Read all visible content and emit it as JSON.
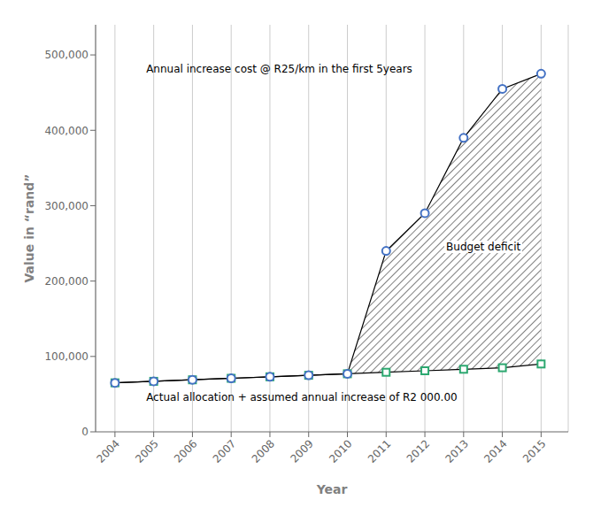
{
  "chart_data": {
    "type": "line",
    "xlabel": "Year",
    "ylabel": "Value in “rand”",
    "x": [
      2004,
      2005,
      2006,
      2007,
      2008,
      2009,
      2010,
      2011,
      2012,
      2013,
      2014,
      2015
    ],
    "xlim": [
      2003.5,
      2015.7
    ],
    "xticks": [
      2004,
      2005,
      2006,
      2007,
      2008,
      2009,
      2010,
      2011,
      2012,
      2013,
      2014,
      2015
    ],
    "ylim": [
      0,
      540000
    ],
    "yticks": [
      0,
      {
        "value": 100000,
        "label": "100,000"
      },
      {
        "value": 200000,
        "label": "200,000"
      },
      {
        "value": 300000,
        "label": "300,000"
      },
      {
        "value": 400000,
        "label": "400,000"
      },
      {
        "value": 500000,
        "label": "500,000"
      }
    ],
    "grid": "x",
    "series": [
      {
        "values": [
          65000,
          67000,
          69000,
          71000,
          73000,
          75000,
          77000,
          79000,
          81000,
          83000,
          85000,
          90000
        ],
        "color": "#2ca870",
        "marker": "square"
      },
      {
        "values": [
          65000,
          67000,
          69000,
          71000,
          73000,
          75000,
          77000,
          240000,
          290000,
          390000,
          455000,
          475000
        ],
        "color": "#4472c4",
        "marker": "circle"
      }
    ],
    "annotations": [
      "Annual increase cost @ R25/km in the first 5years",
      "Actual allocation + assumed annual increase of R2 000.00",
      "Budget deficit"
    ]
  }
}
